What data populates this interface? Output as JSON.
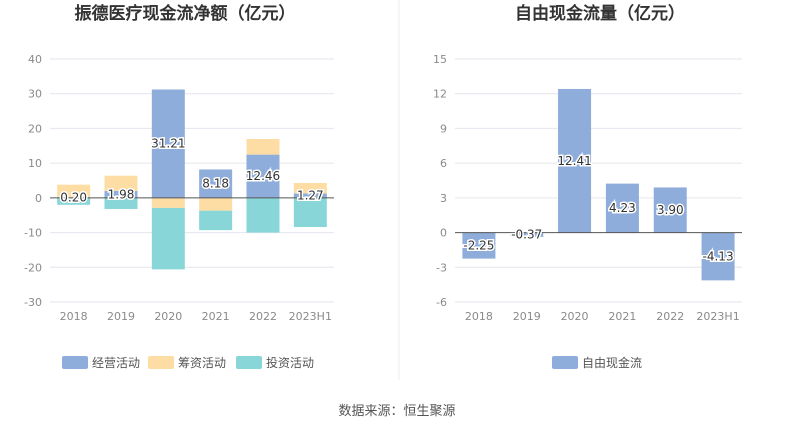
{
  "source_text": "数据来源：恒生聚源",
  "colors": {
    "operating": "#8eadda",
    "financing": "#fddda4",
    "investing": "#88d6d8",
    "fcf": "#8eadda",
    "grid": "#e3e6ee",
    "axis": "#555555"
  },
  "chart_data": [
    {
      "type": "bar",
      "stacked": true,
      "title": "振德医疗现金流净额（亿元）",
      "categories": [
        "2018",
        "2019",
        "2020",
        "2021",
        "2022",
        "2023H1"
      ],
      "ylim": [
        -30,
        40
      ],
      "yticks": [
        40,
        30,
        20,
        10,
        0,
        -10,
        -20,
        -30
      ],
      "series": [
        {
          "name": "经营活动",
          "color_key": "operating",
          "values": [
            0.2,
            1.98,
            31.21,
            8.18,
            12.46,
            1.27
          ]
        },
        {
          "name": "筹资活动",
          "color_key": "financing",
          "values": [
            3.6,
            4.4,
            -2.9,
            -3.7,
            4.5,
            3.0
          ]
        },
        {
          "name": "投资活动",
          "color_key": "investing",
          "values": [
            -2.0,
            -3.2,
            -17.7,
            -5.6,
            -10.0,
            -8.4
          ]
        }
      ],
      "data_labels": [
        "0.20",
        "1.98",
        "31.21",
        "8.18",
        "12.46",
        "1.27"
      ],
      "legend_position": "bottom"
    },
    {
      "type": "bar",
      "title": "自由现金流量（亿元）",
      "categories": [
        "2018",
        "2019",
        "2020",
        "2021",
        "2022",
        "2023H1"
      ],
      "ylim": [
        -6,
        15
      ],
      "yticks": [
        15,
        12,
        9,
        6,
        3,
        0,
        -3,
        -6
      ],
      "series": [
        {
          "name": "自由现金流",
          "color_key": "fcf",
          "values": [
            -2.25,
            -0.37,
            12.41,
            4.23,
            3.9,
            -4.13
          ]
        }
      ],
      "data_labels": [
        "-2.25",
        "-0.37",
        "12.41",
        "4.23",
        "3.90",
        "-4.13"
      ],
      "legend_position": "bottom"
    }
  ]
}
